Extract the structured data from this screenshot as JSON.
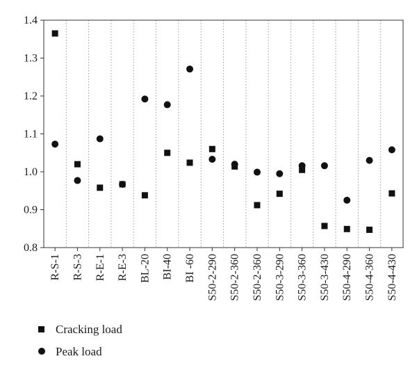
{
  "chart_data": {
    "type": "scatter",
    "title": "",
    "xlabel": "",
    "ylabel": "",
    "ylim": [
      0.8,
      1.4
    ],
    "yticks": [
      "0.8",
      "0.9",
      "1.0",
      "1.1",
      "1.2",
      "1.3",
      "1.4"
    ],
    "grid": "vertical-dotted",
    "legend_position": "bottom-left",
    "categories": [
      "R-S-1",
      "R-S-3",
      "R-E-1",
      "R-E-3",
      "BL-20",
      "BI-40",
      "BI -60",
      "S50-2-290",
      "S50-2-360",
      "S50-2-360",
      "S50-3-290",
      "S50-3-360",
      "S50-3-430",
      "S50-4-290",
      "S50-4-360",
      "S50-4-430"
    ],
    "series": [
      {
        "name": "Cracking load",
        "marker": "square",
        "values": [
          1.365,
          1.02,
          0.958,
          0.967,
          0.938,
          1.05,
          1.024,
          1.06,
          1.014,
          0.912,
          0.942,
          1.005,
          0.857,
          0.849,
          0.847,
          0.943
        ]
      },
      {
        "name": "Peak load",
        "marker": "circle",
        "values": [
          1.073,
          0.977,
          1.087,
          0.967,
          1.192,
          1.177,
          1.271,
          1.033,
          1.02,
          0.999,
          0.995,
          1.016,
          1.016,
          0.925,
          1.03,
          1.058
        ]
      }
    ],
    "colors": {
      "marker": "#111111",
      "axis": "#333333",
      "grid": "#9a9a9a"
    }
  }
}
